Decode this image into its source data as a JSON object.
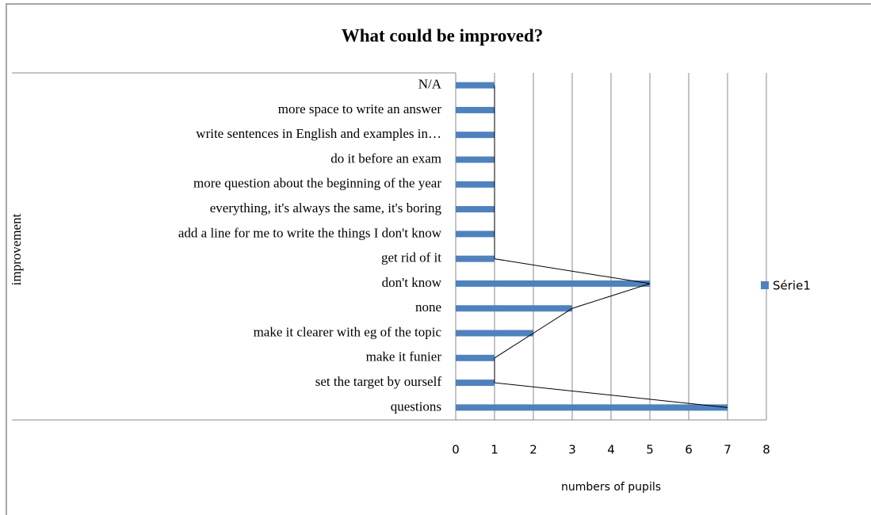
{
  "chart_data": {
    "type": "bar",
    "orientation": "horizontal",
    "title": "What could be improved?",
    "categories": [
      "N/A",
      "more space to write an answer",
      "write sentences in English and examples in…",
      "do it before an exam",
      "more question about the beginning of the year",
      "everything, it's always the same, it's boring",
      "add a line for me to write the things I don't know",
      "get rid of it",
      "don't know",
      "none",
      "make it clearer with eg of the topic",
      "make it funier",
      "set the target by ourself",
      "questions"
    ],
    "series": [
      {
        "name": "Série1",
        "color": "#4f81bd",
        "values": [
          1,
          1,
          1,
          1,
          1,
          1,
          1,
          1,
          5,
          3,
          2,
          1,
          1,
          7
        ]
      }
    ],
    "xlim": [
      0,
      8
    ],
    "xticks": [
      0,
      1,
      2,
      3,
      4,
      5,
      6,
      7,
      8
    ],
    "grid": true,
    "xlabel": "numbers of pupils",
    "ylabel": "improvement",
    "legend": "right"
  }
}
